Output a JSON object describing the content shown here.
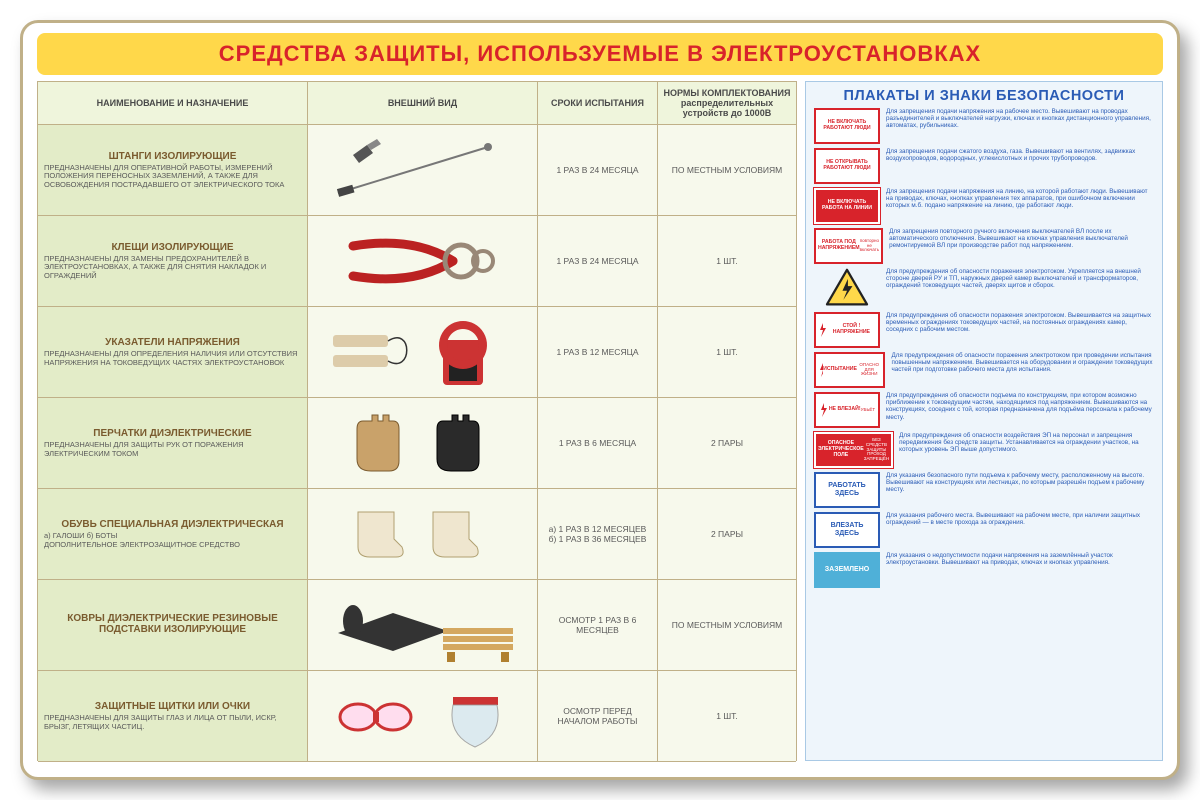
{
  "colors": {
    "border": "#c0b088",
    "title_bg": "#ffd84a",
    "title_text": "#d8232b",
    "cell_name_bg": "#e3ecc8",
    "cell_bg": "#f7f9ec",
    "header_bg": "#eff5dc",
    "right_border": "#a9c9e5",
    "right_bg": "#eef5fb",
    "blue": "#2a5bb5",
    "red": "#d8232b",
    "cyan": "#4fb0d8",
    "item_title": "#7a5b2f"
  },
  "title": "СРЕДСТВА ЗАЩИТЫ, ИСПОЛЬЗУЕМЫЕ В ЭЛЕКТРОУСТАНОВКАХ",
  "table": {
    "headers": {
      "name": "НАИМЕНОВАНИЕ И НАЗНАЧЕНИЕ",
      "view": "ВНЕШНИЙ ВИД",
      "test": "СРОКИ ИСПЫТАНИЯ",
      "norm": "НОРМЫ КОМПЛЕКТОВАНИЯ распределительных устройств до 1000В"
    },
    "rows": [
      {
        "title": "ШТАНГИ ИЗОЛИРУЮЩИЕ",
        "desc": "ПРЕДНАЗНАЧЕНЫ ДЛЯ ОПЕРАТИВНОЙ РАБОТЫ, ИЗМЕРЕНИЙ ПОЛОЖЕНИЯ ПЕРЕНОСНЫХ ЗАЗЕМЛЕНИЙ, А ТАКЖЕ ДЛЯ ОСВОБОЖДЕНИЯ ПОСТРАДАВШЕГО ОТ ЭЛЕКТРИЧЕСКОГО ТОКА",
        "test": "1 РАЗ В 24 МЕСЯЦА",
        "norm": "ПО МЕСТНЫМ УСЛОВИЯМ"
      },
      {
        "title": "КЛЕЩИ ИЗОЛИРУЮЩИЕ",
        "desc": "ПРЕДНАЗНАЧЕНЫ ДЛЯ ЗАМЕНЫ ПРЕДОХРАНИТЕЛЕЙ В ЭЛЕКТРОУСТАНОВКАХ, А ТАКЖЕ ДЛЯ СНЯТИЯ НАКЛАДОК И ОГРАЖДЕНИЙ",
        "test": "1 РАЗ В 24 МЕСЯЦА",
        "norm": "1 ШТ."
      },
      {
        "title": "УКАЗАТЕЛИ НАПРЯЖЕНИЯ",
        "desc": "ПРЕДНАЗНАЧЕНЫ ДЛЯ ОПРЕДЕЛЕНИЯ НАЛИЧИЯ ИЛИ ОТСУТСТВИЯ НАПРЯЖЕНИЯ НА ТОКОВЕДУЩИХ ЧАСТЯХ ЭЛЕКТРОУСТАНОВОК",
        "test": "1 РАЗ В 12 МЕСЯЦА",
        "norm": "1 ШТ."
      },
      {
        "title": "ПЕРЧАТКИ ДИЭЛЕКТРИЧЕСКИЕ",
        "desc": "ПРЕДНАЗНАЧЕНЫ ДЛЯ ЗАЩИТЫ РУК ОТ ПОРАЖЕНИЯ ЭЛЕКТРИЧЕСКИМ ТОКОМ",
        "test": "1 РАЗ В 6 МЕСЯЦА",
        "norm": "2 ПАРЫ"
      },
      {
        "title": "ОБУВЬ СПЕЦИАЛЬНАЯ ДИЭЛЕКТРИЧЕСКАЯ",
        "desc": "а) ГАЛОШИ    б) БОТЫ\nДОПОЛНИТЕЛЬНОЕ ЭЛЕКТРОЗАЩИТНОЕ СРЕДСТВО",
        "test": "а) 1 РАЗ В 12 МЕСЯЦЕВ\nб) 1 РАЗ В 36 МЕСЯЦЕВ",
        "norm": "2 ПАРЫ"
      },
      {
        "title": "КОВРЫ ДИЭЛЕКТРИЧЕСКИЕ РЕЗИНОВЫЕ\nПОДСТАВКИ ИЗОЛИРУЮЩИЕ",
        "desc": "",
        "test": "ОСМОТР 1 РАЗ В 6 МЕСЯЦЕВ",
        "norm": "ПО МЕСТНЫМ УСЛОВИЯМ"
      },
      {
        "title": "ЗАЩИТНЫЕ ЩИТКИ ИЛИ ОЧКИ",
        "desc": "ПРЕДНАЗНАЧЕНЫ ДЛЯ ЗАЩИТЫ ГЛАЗ И ЛИЦА ОТ ПЫЛИ, ИСКР, БРЫЗГ, ЛЕТЯЩИХ ЧАСТИЦ.",
        "test": "ОСМОТР ПЕРЕД НАЧАЛОМ РАБОТЫ",
        "norm": "1 ШТ."
      }
    ]
  },
  "right": {
    "title": "ПЛАКАТЫ И ЗНАКИ БЕЗОПАСНОСТИ",
    "signs": [
      {
        "style": "red-border",
        "label": "НЕ ВКЛЮЧАТЬ РАБОТАЮТ ЛЮДИ",
        "desc": "Для запрещения подачи напряжения на рабочее место. Вывешивают на проводах разъединителей и выключателей нагрузки, ключах и кнопках дистанционного управления, автоматах, рубильниках."
      },
      {
        "style": "red-border",
        "label": "НЕ ОТКРЫВАТЬ РАБОТАЮТ ЛЮДИ",
        "desc": "Для запрещения подачи сжатого воздуха, газа. Вывешивают на вентилях, задвижках воздухопроводов, водородных, углекислотных и прочих трубопроводов."
      },
      {
        "style": "red-fill",
        "label": "НЕ ВКЛЮЧАТЬ РАБОТА НА ЛИНИИ",
        "desc": "Для запрещения подачи напряжения на линию, на которой работают люди. Вывешивают на приводах, ключах, кнопках управления тех аппаратов, при ошибочном включении которых м.б. подано напряжение на линию, где работают люди."
      },
      {
        "style": "red-border",
        "label": "РАБОТА ПОД НАПРЯЖЕНИЕМ",
        "sub": "повторно не включать",
        "desc": "Для запрещения повторного ручного включения выключателей ВЛ после их автоматического отключения. Вывешивают на ключах управления выключателей ремонтируемой ВЛ при производстве работ под напряжением."
      },
      {
        "style": "yellow-tri",
        "label": "",
        "desc": "Для предупреждения об опасности поражения электротоком. Укрепляется на внешней стороне дверей РУ и ТП, наружных дверей камер выключателей и трансформаторов, ограждений токоведущих частей, дверях щитов и сборок."
      },
      {
        "style": "red-border",
        "label": "СТОЙ ! НАПРЯЖЕНИЕ",
        "bolt": true,
        "desc": "Для предупреждения об опасности поражения электротоком. Вывешивается на защитных временных ограждениях токоведущих частей, на постоянных ограждениях камер, соседних с рабочим местом."
      },
      {
        "style": "red-border",
        "label": "ИСПЫТАНИЕ",
        "sub": "ОПАСНО ДЛЯ ЖИЗНИ",
        "bolt": true,
        "desc": "Для предупреждения об опасности поражения электротоком при проведении испытания повышенным напряжением. Вывешивается на оборудовании и ограждении токоведущих частей при подготовке рабочего места для испытания."
      },
      {
        "style": "red-border",
        "label": "НЕ ВЛЕЗАЙ!",
        "sub": "УБЬЁТ",
        "bolt": true,
        "desc": "Для предупреждения об опасности подъема по конструкциям, при котором возможно приближение к токоведущим частям, находящимся под напряжением. Вывешиваются на конструкциях, соседних с той, которая предназначена для подъёма персонала к рабочему месту."
      },
      {
        "style": "red-fill",
        "label": "ОПАСНОЕ ЭЛЕКТРИЧЕСКОЕ ПОЛЕ",
        "sub": "БЕЗ СРЕДСТВ ЗАЩИТЫ ПРОХОД ЗАПРЕЩЁН",
        "desc": "Для предупреждения об опасности воздействия ЭП на персонал и запрещения передвижения без средств защиты. Устанавливается на ограждении участков, на которых уровень ЭП выше допустимого."
      },
      {
        "style": "blue-border",
        "label": "РАБОТАТЬ ЗДЕСЬ",
        "desc": "Для указания безопасного пути подъема к рабочему месту, расположенному на высоте. Вывешивают на конструкциях или лестницах, по которым разрешён подъем к рабочему месту."
      },
      {
        "style": "blue-border",
        "label": "ВЛЕЗАТЬ ЗДЕСЬ",
        "desc": "Для указания рабочего места. Вывешивают на рабочем месте, при наличии защитных ограждений — в месте прохода за ограждения."
      },
      {
        "style": "blue-fill",
        "label": "ЗАЗЕМЛЕНО",
        "desc": "Для указания о недопустимости подачи напряжения на заземлённый участок электроустановки. Вывешивают на приводах, ключах и кнопках управления."
      }
    ]
  }
}
